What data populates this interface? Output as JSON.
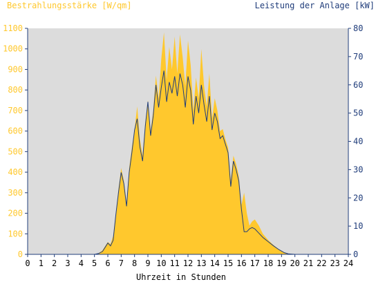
{
  "chart_data": {
    "type": "area",
    "left_axis_label": "Bestrahlungsstärke [W/qm]",
    "right_axis_label": "Leistung der Anlage [kW]",
    "xlabel": "Uhrzeit in Stunden",
    "x_ticks": [
      "0",
      "1",
      "2",
      "3",
      "4",
      "5",
      "6",
      "7",
      "8",
      "9",
      "10",
      "11",
      "12",
      "13",
      "14",
      "15",
      "16",
      "17",
      "18",
      "19",
      "20",
      "21",
      "22",
      "23",
      "24"
    ],
    "xlim": [
      0,
      24
    ],
    "ylim_left": [
      0,
      1100
    ],
    "ylim_right": [
      0,
      80
    ],
    "y_ticks_left": [
      "0",
      "100",
      "200",
      "300",
      "400",
      "500",
      "600",
      "700",
      "800",
      "900",
      "1000",
      "1100"
    ],
    "y_ticks_right": [
      "0",
      "10",
      "20",
      "30",
      "40",
      "50",
      "60",
      "70",
      "80"
    ],
    "grid": false,
    "colors": {
      "irradiance": "#FFC82D",
      "power": "#1F3C7A",
      "plot_bg": "#DCDCDC",
      "frame": "#1F3C7A"
    },
    "series": [
      {
        "axis": "left",
        "x": [
          0,
          5,
          5.3,
          5.6,
          5.8,
          6.0,
          6.2,
          6.4,
          6.6,
          6.8,
          7.0,
          7.2,
          7.4,
          7.6,
          7.8,
          8.0,
          8.2,
          8.4,
          8.6,
          8.8,
          9.0,
          9.2,
          9.4,
          9.6,
          9.8,
          10.0,
          10.2,
          10.4,
          10.6,
          10.8,
          11.0,
          11.2,
          11.4,
          11.6,
          11.8,
          12.0,
          12.2,
          12.4,
          12.6,
          12.8,
          13.0,
          13.2,
          13.4,
          13.6,
          13.8,
          14.0,
          14.2,
          14.4,
          14.6,
          14.8,
          15.0,
          15.2,
          15.4,
          15.6,
          15.8,
          16.0,
          16.2,
          16.4,
          16.6,
          16.8,
          17.0,
          17.3,
          17.6,
          18.0,
          18.4,
          18.8,
          19.2,
          19.5,
          20,
          24
        ],
        "values": [
          0,
          0,
          5,
          20,
          40,
          60,
          50,
          90,
          200,
          320,
          420,
          360,
          250,
          420,
          520,
          610,
          720,
          560,
          480,
          640,
          750,
          600,
          700,
          870,
          760,
          950,
          1080,
          850,
          1010,
          900,
          1060,
          880,
          1070,
          960,
          820,
          1040,
          920,
          700,
          860,
          760,
          1000,
          820,
          720,
          880,
          660,
          760,
          700,
          600,
          610,
          560,
          520,
          360,
          480,
          440,
          380,
          240,
          300,
          200,
          140,
          160,
          170,
          140,
          100,
          70,
          45,
          25,
          10,
          3,
          0,
          0
        ]
      },
      {
        "axis": "right",
        "x": [
          0,
          5,
          5.3,
          5.6,
          5.8,
          6.0,
          6.2,
          6.4,
          6.6,
          6.8,
          7.0,
          7.2,
          7.4,
          7.6,
          7.8,
          8.0,
          8.2,
          8.4,
          8.6,
          8.8,
          9.0,
          9.2,
          9.4,
          9.6,
          9.8,
          10.0,
          10.2,
          10.4,
          10.6,
          10.8,
          11.0,
          11.2,
          11.4,
          11.6,
          11.8,
          12.0,
          12.2,
          12.4,
          12.6,
          12.8,
          13.0,
          13.2,
          13.4,
          13.6,
          13.8,
          14.0,
          14.2,
          14.4,
          14.6,
          14.8,
          15.0,
          15.2,
          15.4,
          15.6,
          15.8,
          16.0,
          16.2,
          16.4,
          16.6,
          16.8,
          17.0,
          17.3,
          17.6,
          18.0,
          18.4,
          18.8,
          19.2,
          19.5,
          20,
          24
        ],
        "values": [
          0,
          0,
          0.3,
          1,
          2.5,
          4,
          3,
          5,
          14,
          22,
          29,
          25,
          17,
          29,
          36,
          44,
          48,
          38,
          33,
          45,
          54,
          42,
          49,
          60,
          52,
          59,
          65,
          54,
          61,
          57,
          63,
          56,
          64,
          60,
          52,
          63,
          58,
          46,
          56,
          50,
          60,
          53,
          47,
          56,
          44,
          50,
          47,
          41,
          42,
          39,
          36,
          24,
          33,
          30,
          26,
          16,
          8,
          8,
          9,
          9.5,
          9,
          7.5,
          6,
          4.5,
          3,
          1.7,
          0.6,
          0.2,
          0,
          0
        ]
      }
    ]
  }
}
